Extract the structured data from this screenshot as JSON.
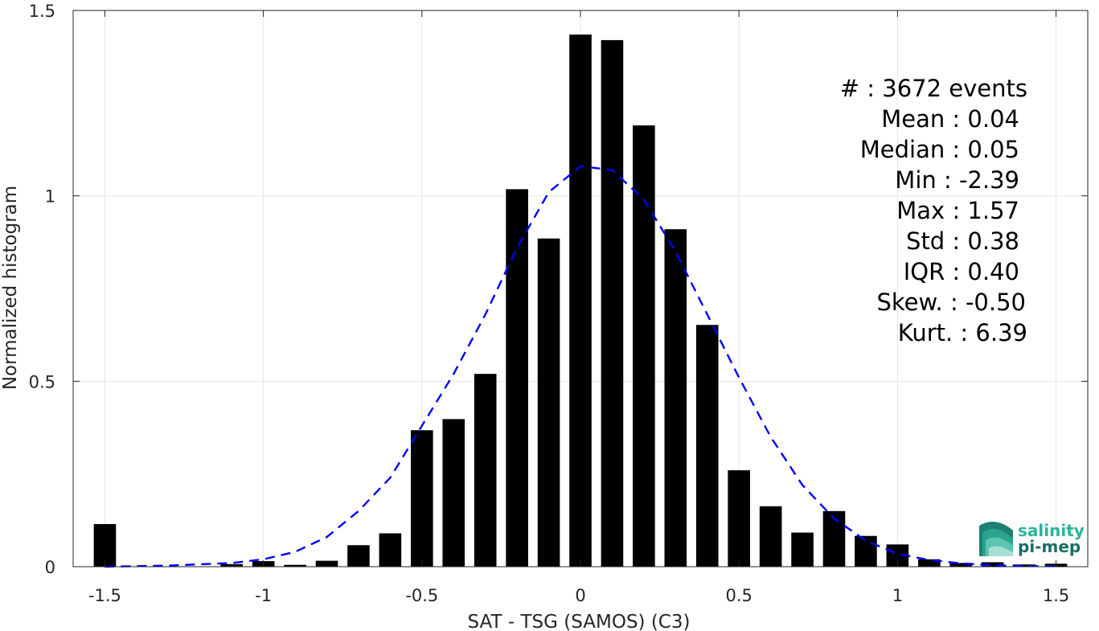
{
  "chart_data": {
    "type": "bar",
    "xlabel": "SAT - TSG (SAMOS) (C3)",
    "ylabel": "Normalized histogram",
    "xlim": [
      -1.6,
      1.6
    ],
    "ylim": [
      0,
      1.5
    ],
    "xticks": [
      -1.5,
      -1,
      -0.5,
      0,
      0.5,
      1,
      1.5
    ],
    "xtick_labels": [
      "-1.5",
      "-1",
      "-0.5",
      "0",
      "0.5",
      "1",
      "1.5"
    ],
    "yticks": [
      0,
      0.5,
      1,
      1.5
    ],
    "ytick_labels": [
      "0",
      "0.5",
      "1",
      "1.5"
    ],
    "grid": true,
    "bar_color": "#000000",
    "bars": {
      "x": [
        -1.5,
        -1.1,
        -1.0,
        -0.9,
        -0.8,
        -0.7,
        -0.6,
        -0.5,
        -0.4,
        -0.3,
        -0.2,
        -0.1,
        0.0,
        0.1,
        0.2,
        0.3,
        0.4,
        0.5,
        0.6,
        0.7,
        0.8,
        0.9,
        1.0,
        1.1,
        1.2,
        1.3,
        1.4,
        1.5
      ],
      "values": [
        0.115,
        0.007,
        0.015,
        0.005,
        0.016,
        0.058,
        0.09,
        0.368,
        0.398,
        0.52,
        1.018,
        0.885,
        1.435,
        1.42,
        1.19,
        0.91,
        0.652,
        0.26,
        0.163,
        0.092,
        0.15,
        0.083,
        0.06,
        0.02,
        0.01,
        0.012,
        0.006,
        0.008
      ],
      "width": 0.07
    },
    "fit_curve": {
      "style": "dashed",
      "color": "#0000ff",
      "x": [
        -1.5,
        -1.3,
        -1.1,
        -1.0,
        -0.9,
        -0.8,
        -0.7,
        -0.6,
        -0.5,
        -0.4,
        -0.3,
        -0.2,
        -0.1,
        0.0,
        0.1,
        0.2,
        0.3,
        0.4,
        0.5,
        0.6,
        0.7,
        0.8,
        0.9,
        1.0,
        1.1,
        1.2,
        1.3,
        1.4,
        1.5
      ],
      "y": [
        0.0,
        0.003,
        0.01,
        0.02,
        0.04,
        0.08,
        0.15,
        0.24,
        0.38,
        0.52,
        0.68,
        0.86,
        1.01,
        1.08,
        1.07,
        0.99,
        0.85,
        0.68,
        0.51,
        0.35,
        0.22,
        0.13,
        0.07,
        0.035,
        0.018,
        0.009,
        0.004,
        0.002,
        0.001
      ]
    }
  },
  "stats": [
    "#  : 3672 events",
    "Mean : 0.04",
    "Median : 0.05",
    "Min : -2.39",
    "Max : 1.57",
    "Std : 0.38",
    "IQR : 0.40",
    "Skew. : -0.50",
    "Kurt. : 6.39"
  ],
  "logo": {
    "line1": "salinity",
    "line2": "pi-mep",
    "color1": "#2bb39a",
    "color2": "#1c6e66"
  }
}
